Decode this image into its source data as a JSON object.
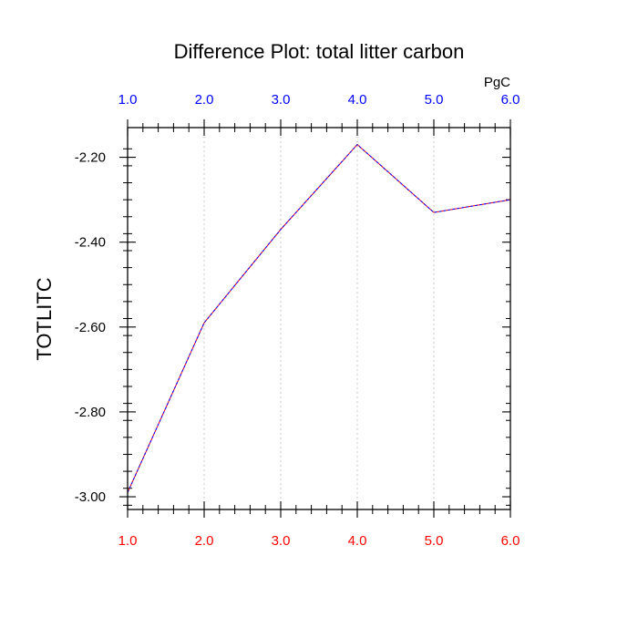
{
  "chart_data": {
    "type": "line",
    "title": "Difference Plot: total litter carbon",
    "ylabel": "TOTLITC",
    "units": "PgC",
    "x": [
      1.0,
      2.0,
      3.0,
      4.0,
      5.0,
      6.0
    ],
    "series": [
      {
        "values": [
          -2.99,
          -2.59,
          -2.37,
          -2.17,
          -2.33,
          -2.3
        ]
      }
    ],
    "xlim": [
      1.0,
      6.0
    ],
    "ylim": [
      -3.03,
      -2.13
    ],
    "xticks": [
      "1.0",
      "2.0",
      "3.0",
      "4.0",
      "5.0",
      "6.0"
    ],
    "xtick_values": [
      1,
      2,
      3,
      4,
      5,
      6
    ],
    "yticks": [
      "-2.20",
      "-2.40",
      "-2.60",
      "-2.80",
      "-3.00"
    ],
    "ytick_values": [
      -2.2,
      -2.4,
      -2.6,
      -2.8,
      -3.0
    ],
    "bottom_tick_color": "#ff0000",
    "top_tick_color": "#0000ff",
    "line_colors": [
      "#ff0000",
      "#0000ff"
    ],
    "grid": "vertical-dotted"
  }
}
